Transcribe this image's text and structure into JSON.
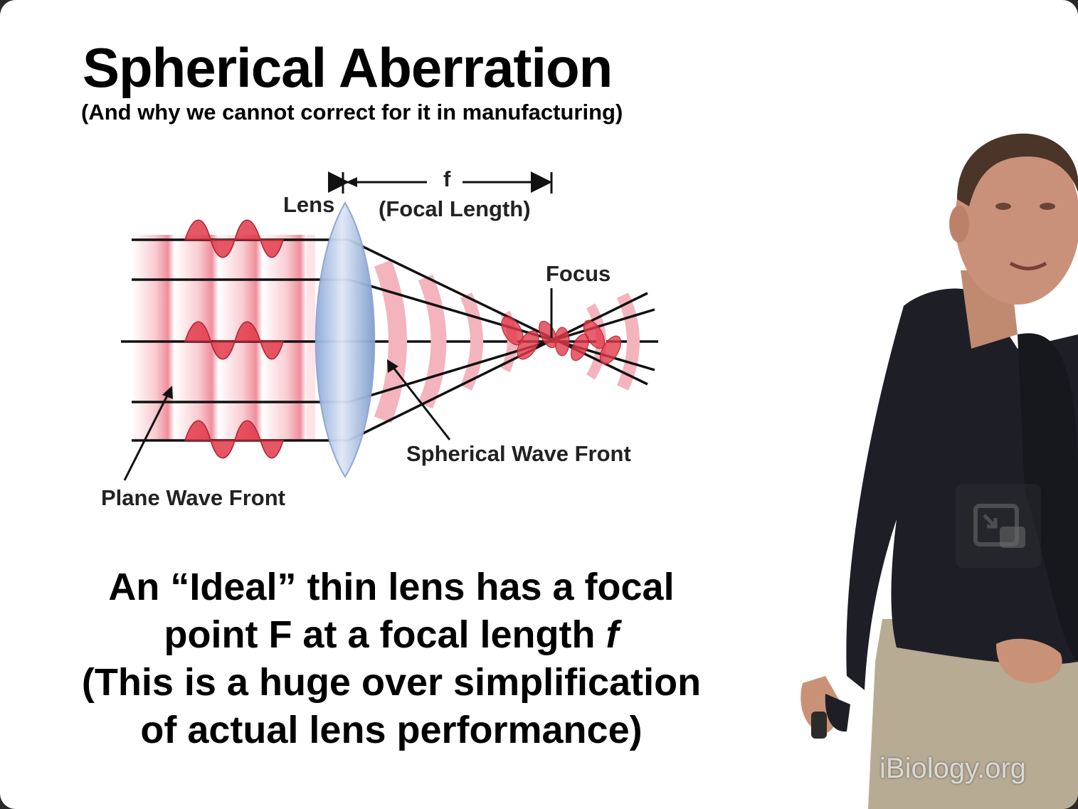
{
  "slide": {
    "title": "Spherical Aberration",
    "subtitle": "(And why we cannot correct for it in manufacturing)",
    "body_line1": "An “Ideal” thin lens has a focal",
    "body_line2a": "point F at a focal length ",
    "body_line2b": "f",
    "body_line3": "(This is a huge over simplification",
    "body_line4": "of actual lens performance)"
  },
  "diagram": {
    "label_lens": "Lens",
    "label_f": "f",
    "label_focal_length": "(Focal Length)",
    "label_focus": "Focus",
    "label_plane_wave": "Plane Wave Front",
    "label_spherical_wave": "Spherical Wave Front"
  },
  "player": {
    "watermark": "iBiology.org",
    "pip_icon": "picture-in-picture-icon"
  },
  "colors": {
    "wave_red": "#e23a4a",
    "wave_pink": "#f7c6cc",
    "lens_blue": "#a9c0e6"
  }
}
